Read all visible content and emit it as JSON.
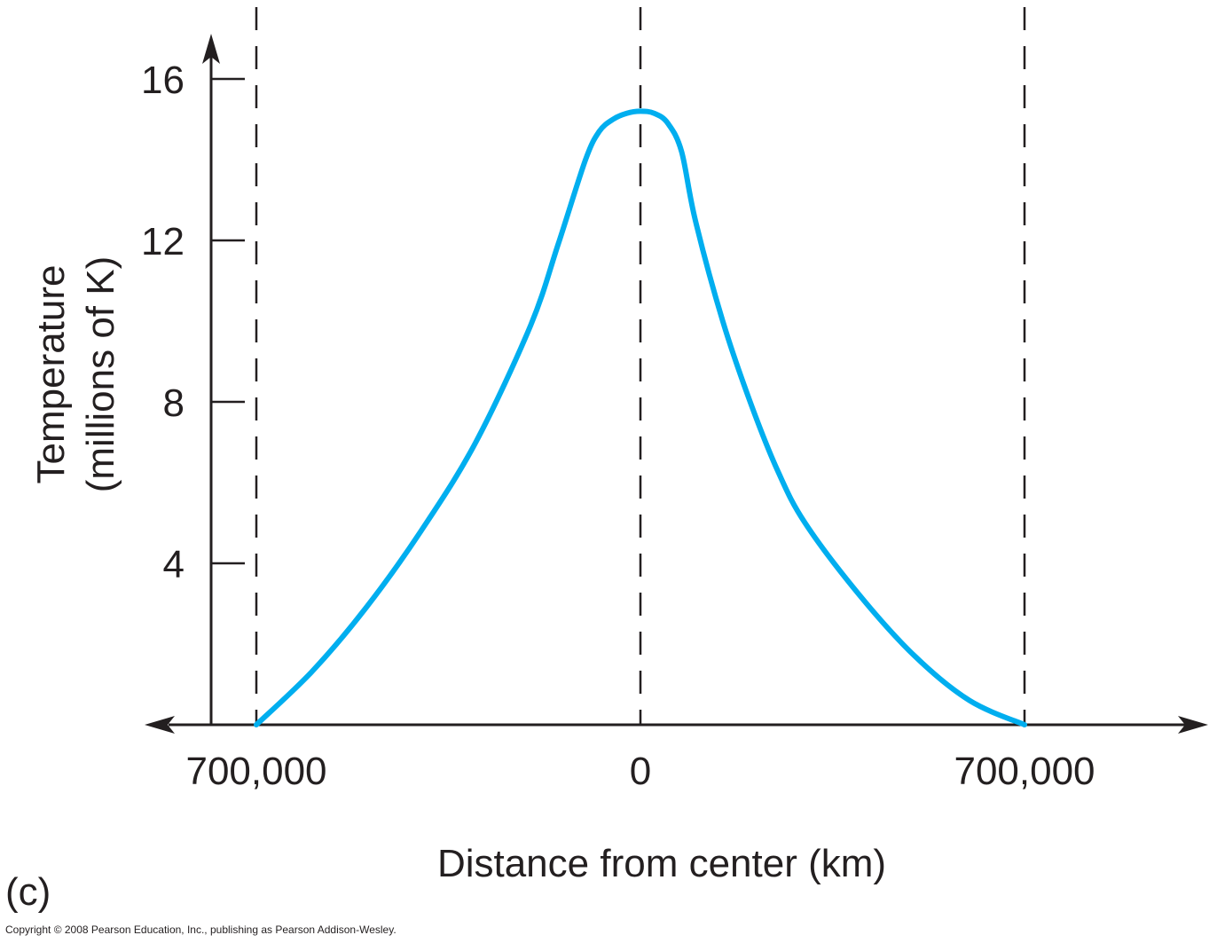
{
  "panel_label": "(c)",
  "copyright": "Copyright © 2008 Pearson Education, Inc., publishing as Pearson Addison-Wesley.",
  "colors": {
    "curve": "#00aeef",
    "axis": "#231f20",
    "dashed": "#231f20"
  },
  "chart_data": {
    "type": "line",
    "title": "",
    "xlabel": "Distance from center (km)",
    "ylabel_line1": "Temperature",
    "ylabel_line2": "(millions of K)",
    "xlim": [
      -1000000,
      1450000
    ],
    "ylim": [
      0,
      16
    ],
    "y_ticks": [
      4,
      8,
      12,
      16
    ],
    "y_tick_labels": [
      "4",
      "8",
      "12",
      "16"
    ],
    "x_ticks": [
      -700000,
      0,
      700000
    ],
    "x_tick_labels": [
      "700,000",
      "0",
      "700,000"
    ],
    "dashed_lines_x": [
      -700000,
      0,
      700000
    ],
    "grid": false,
    "series": [
      {
        "x": [
          -700000,
          -600000,
          -500000,
          -400000,
          -300000,
          -200000,
          -150000,
          -100000,
          -75000,
          -50000,
          -25000,
          0,
          25000,
          50000,
          75000,
          100000,
          150000,
          200000,
          250000,
          300000,
          400000,
          500000,
          600000,
          700000
        ],
        "values": [
          0,
          1.3,
          2.9,
          4.8,
          7.0,
          9.9,
          11.9,
          14.0,
          14.7,
          15.0,
          15.15,
          15.2,
          15.15,
          14.9,
          14.2,
          12.5,
          10.0,
          8.0,
          6.3,
          5.0,
          3.2,
          1.7,
          0.6,
          0
        ]
      }
    ]
  }
}
